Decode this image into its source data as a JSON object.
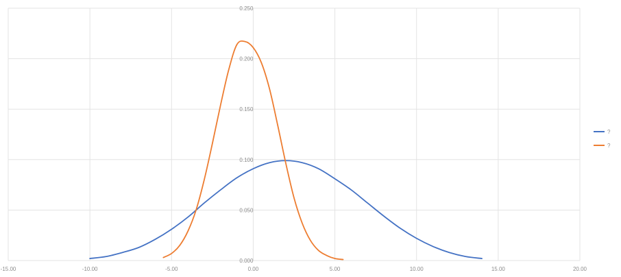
{
  "chart_data": {
    "type": "line",
    "title": "",
    "xlabel": "",
    "ylabel": "",
    "xlim": [
      -15,
      20
    ],
    "ylim": [
      0,
      0.25
    ],
    "x_ticks": [
      -15,
      -10,
      -5,
      0,
      5,
      10,
      15,
      20
    ],
    "x_tick_labels": [
      "-15.00",
      "-10.00",
      "-5.00",
      "0.00",
      "5.00",
      "10.00",
      "15.00",
      "20.00"
    ],
    "y_ticks": [
      0,
      0.05,
      0.1,
      0.15,
      0.2,
      0.25
    ],
    "y_tick_labels": [
      "0.000",
      "0.050",
      "0.100",
      "0.150",
      "0.200",
      "0.250"
    ],
    "grid": true,
    "legend_position": "right",
    "series": [
      {
        "name": "?",
        "color": "#4472C4",
        "x": [
          -10,
          -9,
          -8,
          -7,
          -6,
          -5,
          -4,
          -3,
          -2,
          -1,
          0,
          1,
          2,
          3,
          4,
          5,
          6,
          7,
          8,
          9,
          10,
          11,
          12,
          13,
          14
        ],
        "y": [
          0.002,
          0.004,
          0.008,
          0.013,
          0.021,
          0.031,
          0.043,
          0.057,
          0.07,
          0.082,
          0.091,
          0.097,
          0.099,
          0.097,
          0.091,
          0.081,
          0.07,
          0.057,
          0.044,
          0.032,
          0.022,
          0.014,
          0.008,
          0.004,
          0.002
        ]
      },
      {
        "name": "?",
        "color": "#ED7D31",
        "x": [
          -5.5,
          -5,
          -4.5,
          -4,
          -3.5,
          -3,
          -2.5,
          -2,
          -1.5,
          -1,
          -0.5,
          0,
          0.5,
          1,
          1.5,
          2,
          2.5,
          3,
          3.5,
          4,
          4.5,
          5,
          5.5
        ],
        "y": [
          0.003,
          0.007,
          0.015,
          0.029,
          0.05,
          0.08,
          0.116,
          0.154,
          0.189,
          0.214,
          0.217,
          0.211,
          0.196,
          0.17,
          0.134,
          0.096,
          0.062,
          0.037,
          0.02,
          0.01,
          0.005,
          0.002,
          0.001
        ]
      }
    ]
  }
}
